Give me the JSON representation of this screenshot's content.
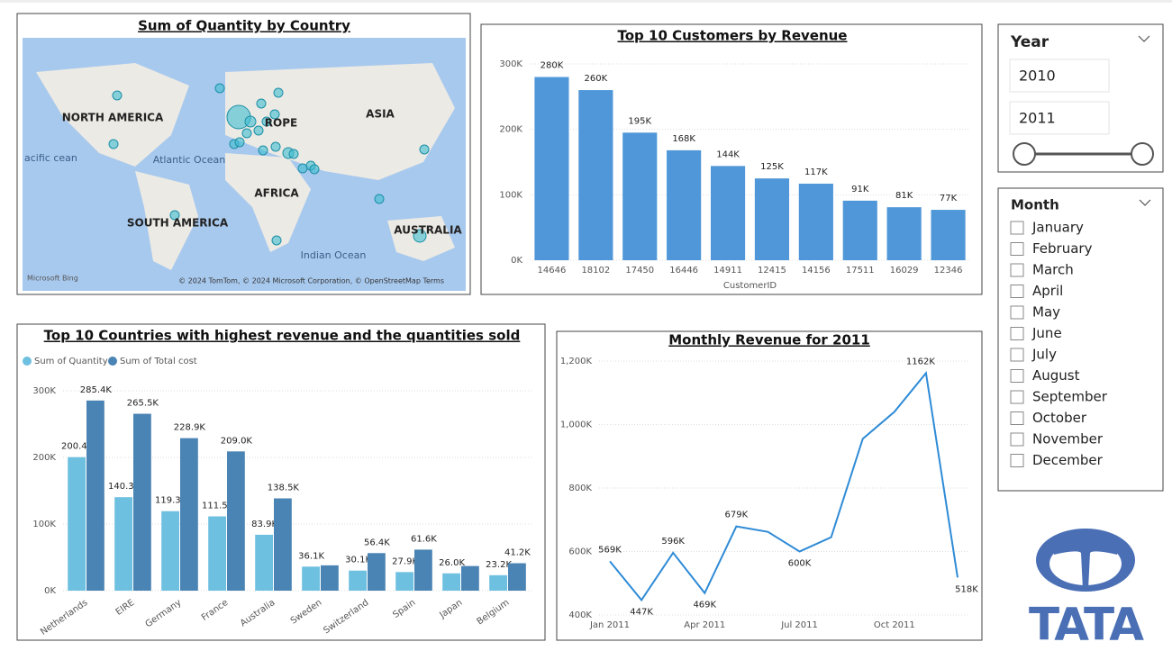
{
  "map": {
    "title": "Sum of Quantity by Country",
    "labels": [
      "NORTH AMERICA",
      "ROPE",
      "ASIA",
      "Atlantic Ocean",
      "AFRICA",
      "SOUTH AMERICA",
      "Indian Ocean",
      "AUSTRALIA",
      "acific cean"
    ],
    "logo": "Microsoft Bing",
    "attribution": "© 2024 TomTom, © 2024 Microsoft Corporation, © OpenStreetMap  Terms"
  },
  "year_slicer": {
    "title": "Year",
    "items": [
      "2010",
      "2011"
    ]
  },
  "month_slicer": {
    "title": "Month",
    "items": [
      "January",
      "February",
      "March",
      "April",
      "May",
      "June",
      "July",
      "August",
      "September",
      "October",
      "November",
      "December"
    ]
  },
  "brand": "TATA",
  "chart_data": [
    {
      "type": "bar",
      "title": "Top 10 Customers by Revenue",
      "x_label": "CustomerID",
      "categories": [
        "14646",
        "18102",
        "17450",
        "16446",
        "14911",
        "12415",
        "14156",
        "17511",
        "16029",
        "12346"
      ],
      "values": [
        280000,
        260000,
        195000,
        168000,
        144000,
        125000,
        117000,
        91000,
        81000,
        77000
      ],
      "value_labels": [
        "280K",
        "260K",
        "195K",
        "168K",
        "144K",
        "125K",
        "117K",
        "91K",
        "81K",
        "77K"
      ],
      "color": "#4f97d8",
      "ylim": [
        0,
        300000
      ],
      "yticks": [
        {
          "value": 0,
          "label": "0K"
        },
        {
          "value": 100000,
          "label": "100K"
        },
        {
          "value": 200000,
          "label": "200K"
        },
        {
          "value": 300000,
          "label": "300K"
        }
      ],
      "grid": true
    },
    {
      "type": "grouped_bar",
      "title": "Top 10 Countries with highest revenue and the quantities sold",
      "categories": [
        "Netherlands",
        "EIRE",
        "Germany",
        "France",
        "Australia",
        "Sweden",
        "Switzerland",
        "Spain",
        "Japan",
        "Belgium"
      ],
      "series": [
        {
          "name": "Sum of Quantity",
          "color": "#6ec0e0",
          "values": [
            200400,
            140300,
            119300,
            111500,
            83900,
            36100,
            30100,
            27900,
            26000,
            23200
          ],
          "value_labels": [
            "200.4K",
            "140.3K",
            "119.3K",
            "111.5K",
            "83.9K",
            "36.1K",
            "30.1K",
            "27.9K",
            "26.0K",
            "23.2K"
          ]
        },
        {
          "name": "Sum of Total cost",
          "color": "#4a84b4",
          "values": [
            285400,
            265500,
            228900,
            209000,
            138500,
            38000,
            56400,
            61600,
            37000,
            41200
          ],
          "value_labels": [
            "285.4K",
            "265.5K",
            "228.9K",
            "209.0K",
            "138.5K",
            null,
            "56.4K",
            "61.6K",
            null,
            "41.2K"
          ]
        }
      ],
      "ylim": [
        0,
        300000
      ],
      "yticks": [
        {
          "value": 0,
          "label": "0K"
        },
        {
          "value": 100000,
          "label": "100K"
        },
        {
          "value": 200000,
          "label": "200K"
        },
        {
          "value": 300000,
          "label": "300K"
        }
      ],
      "legend": "top-left",
      "grid": true
    },
    {
      "type": "line",
      "title": "Monthly Revenue for 2011",
      "categories": [
        "Jan 2011",
        null,
        null,
        "Apr 2011",
        null,
        null,
        "Jul 2011",
        null,
        null,
        "Oct 2011",
        null,
        null
      ],
      "values": [
        569000,
        447000,
        596000,
        469000,
        679000,
        662000,
        600000,
        645000,
        955000,
        1040000,
        1162000,
        518000
      ],
      "value_labels": [
        "569K",
        "447K",
        "596K",
        "469K",
        "679K",
        null,
        "600K",
        null,
        null,
        null,
        "1162K",
        "518K"
      ],
      "color": "#2f8bd6",
      "ylim": [
        400000,
        1200000
      ],
      "yticks": [
        {
          "value": 400000,
          "label": "400K"
        },
        {
          "value": 600000,
          "label": "600K"
        },
        {
          "value": 800000,
          "label": "800K"
        },
        {
          "value": 1000000,
          "label": "1,000K"
        },
        {
          "value": 1200000,
          "label": "1,200K"
        }
      ],
      "grid": true
    }
  ]
}
